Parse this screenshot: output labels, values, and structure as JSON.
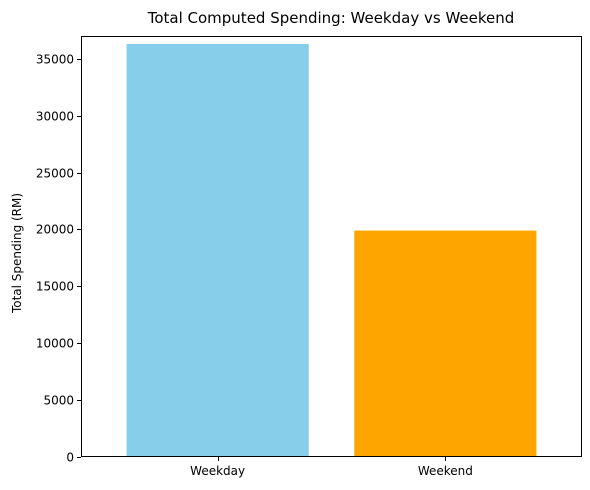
{
  "chart_data": {
    "type": "bar",
    "title": "Total Computed Spending: Weekday vs Weekend",
    "xlabel": "",
    "ylabel": "Total Spending (RM)",
    "categories": [
      "Weekday",
      "Weekend"
    ],
    "values": [
      36300,
      19900
    ],
    "colors": [
      "#87ceeb",
      "#ffa500"
    ],
    "ylim": [
      0,
      37000
    ],
    "yticks": [
      0,
      5000,
      10000,
      15000,
      20000,
      25000,
      30000,
      35000
    ],
    "grid": false,
    "legend": "none"
  }
}
